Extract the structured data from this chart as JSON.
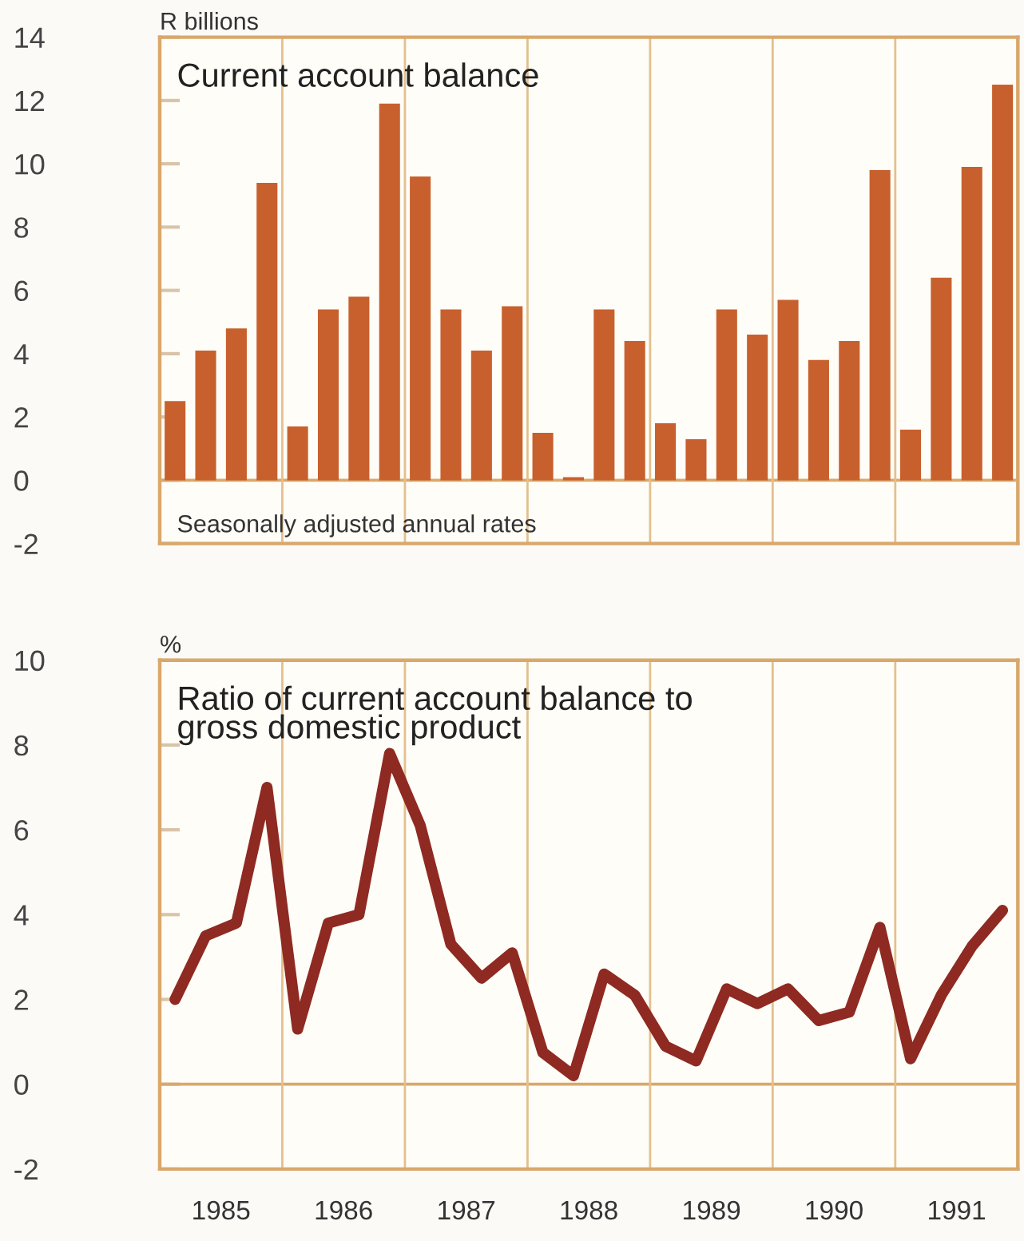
{
  "chart_data": [
    {
      "type": "bar",
      "title": "Current account balance",
      "ylabel": "R billions",
      "annotations": [
        "Seasonally adjusted annual rates"
      ],
      "x": [
        1985.125,
        1985.375,
        1985.625,
        1985.875,
        1986.125,
        1986.375,
        1986.625,
        1986.875,
        1987.125,
        1987.375,
        1987.625,
        1987.875,
        1988.125,
        1988.375,
        1988.625,
        1988.875,
        1989.125,
        1989.375,
        1989.625,
        1989.875,
        1990.125,
        1990.375,
        1990.625,
        1990.875,
        1991.125,
        1991.375,
        1991.625,
        1991.875
      ],
      "series": [
        {
          "color": "#c8602e",
          "values": [
            2.5,
            4.1,
            4.8,
            9.4,
            1.7,
            5.4,
            5.8,
            11.9,
            9.6,
            5.4,
            4.1,
            5.5,
            1.5,
            0.1,
            5.4,
            4.4,
            1.8,
            1.3,
            5.4,
            4.6,
            5.7,
            3.8,
            4.4,
            9.8,
            1.6,
            6.4,
            9.9,
            12.5
          ]
        }
      ],
      "xlim": [
        1985,
        1992
      ],
      "xticks": [
        {
          "value": 1985.5,
          "label": null
        },
        {
          "value": 1986.5,
          "label": null
        },
        {
          "value": 1987.5,
          "label": null
        },
        {
          "value": 1988.5,
          "label": null
        },
        {
          "value": 1989.5,
          "label": null
        },
        {
          "value": 1990.5,
          "label": null
        },
        {
          "value": 1991.5,
          "label": null
        }
      ],
      "ylim": [
        -2,
        14
      ],
      "yticks": [
        -2,
        0,
        2,
        4,
        6,
        8,
        10,
        12,
        14
      ],
      "tick_labels": "y",
      "ref_lines": [
        {
          "axis": "y",
          "value": 0,
          "color": "#d9a86c"
        },
        {
          "axis": "x",
          "value": 1986,
          "color": "#e3c08e"
        },
        {
          "axis": "x",
          "value": 1987,
          "color": "#e3c08e"
        },
        {
          "axis": "x",
          "value": 1988,
          "color": "#e3c08e"
        },
        {
          "axis": "x",
          "value": 1989,
          "color": "#e3c08e"
        },
        {
          "axis": "x",
          "value": 1990,
          "color": "#e3c08e"
        },
        {
          "axis": "x",
          "value": 1991,
          "color": "#e3c08e"
        }
      ],
      "grid": false,
      "legend": false
    },
    {
      "type": "line",
      "title": "Ratio of current account balance to\ngross domestic product",
      "ylabel": "%",
      "x": [
        1985.125,
        1985.375,
        1985.625,
        1985.875,
        1986.125,
        1986.375,
        1986.625,
        1986.875,
        1987.125,
        1987.375,
        1987.625,
        1987.875,
        1988.125,
        1988.375,
        1988.625,
        1988.875,
        1989.125,
        1989.375,
        1989.625,
        1989.875,
        1990.125,
        1990.375,
        1990.625,
        1990.875,
        1991.125,
        1991.375,
        1991.625,
        1991.875
      ],
      "series": [
        {
          "color": "#8e2a22",
          "values": [
            2.0,
            3.5,
            3.8,
            7.0,
            1.3,
            3.8,
            4.0,
            7.8,
            6.1,
            3.3,
            2.5,
            3.1,
            0.75,
            0.2,
            2.6,
            2.1,
            0.9,
            0.55,
            2.25,
            1.9,
            2.25,
            1.5,
            1.7,
            3.7,
            0.6,
            2.1,
            3.25,
            4.1
          ]
        }
      ],
      "xlim": [
        1985,
        1992
      ],
      "xticks": [
        {
          "value": 1985.5,
          "label": "1985"
        },
        {
          "value": 1986.5,
          "label": "1986"
        },
        {
          "value": 1987.5,
          "label": "1987"
        },
        {
          "value": 1988.5,
          "label": "1988"
        },
        {
          "value": 1989.5,
          "label": "1989"
        },
        {
          "value": 1990.5,
          "label": "1990"
        },
        {
          "value": 1991.5,
          "label": "1991"
        }
      ],
      "ylim": [
        -2,
        10
      ],
      "yticks": [
        -2,
        0,
        2,
        4,
        6,
        8,
        10
      ],
      "ref_lines": [
        {
          "axis": "y",
          "value": 0,
          "color": "#d9a86c"
        },
        {
          "axis": "x",
          "value": 1986,
          "color": "#e3c08e"
        },
        {
          "axis": "x",
          "value": 1987,
          "color": "#e3c08e"
        },
        {
          "axis": "x",
          "value": 1988,
          "color": "#e3c08e"
        },
        {
          "axis": "x",
          "value": 1989,
          "color": "#e3c08e"
        },
        {
          "axis": "x",
          "value": 1990,
          "color": "#e3c08e"
        },
        {
          "axis": "x",
          "value": 1991,
          "color": "#e3c08e"
        }
      ],
      "grid": false,
      "legend": false,
      "marker": "none",
      "line_style": "solid"
    }
  ]
}
